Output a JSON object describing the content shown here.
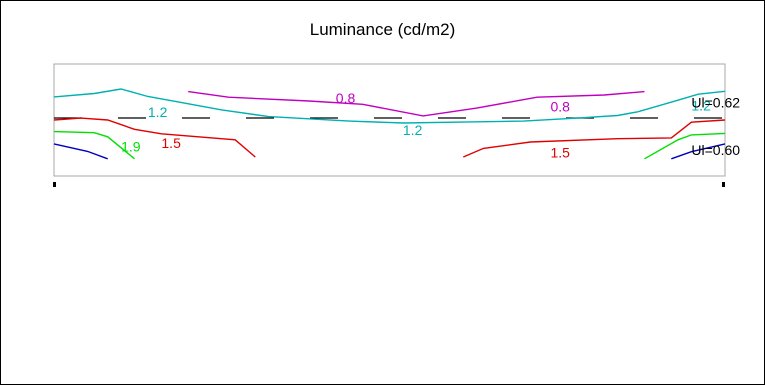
{
  "chart_data": {
    "type": "line",
    "title": "Luminance (cd/m2)",
    "contour_series": [
      {
        "name": "",
        "label": "0.8",
        "color": "#c000c0",
        "segments": [
          [
            [
              0.2,
              0.76
            ],
            [
              0.26,
              0.61
            ],
            [
              0.38,
              0.51
            ],
            [
              0.46,
              0.42
            ],
            [
              0.55,
              0.11
            ],
            [
              0.63,
              0.32
            ],
            [
              0.72,
              0.61
            ],
            [
              0.82,
              0.67
            ],
            [
              0.88,
              0.76
            ]
          ]
        ]
      },
      {
        "name": "",
        "label": "1.2",
        "color": "#00b0b0",
        "segments": [
          [
            [
              0.0,
              0.62
            ],
            [
              0.06,
              0.71
            ],
            [
              0.1,
              0.83
            ],
            [
              0.14,
              0.63
            ],
            [
              0.18,
              0.5
            ],
            [
              0.25,
              0.27
            ],
            [
              0.32,
              0.09
            ],
            [
              0.44,
              -0.03
            ],
            [
              0.52,
              -0.08
            ],
            [
              0.62,
              -0.05
            ],
            [
              0.7,
              -0.03
            ],
            [
              0.78,
              0.05
            ],
            [
              0.84,
              0.12
            ],
            [
              0.87,
              0.22
            ],
            [
              0.93,
              0.53
            ],
            [
              0.96,
              0.69
            ],
            [
              1.0,
              0.77
            ]
          ]
        ]
      },
      {
        "name": "",
        "label": "1.5",
        "color": "#e00000",
        "segments": [
          [
            [
              0.0,
              0.0
            ],
            [
              0.04,
              0.05
            ],
            [
              0.08,
              0.0
            ],
            [
              0.12,
              -0.25
            ],
            [
              0.16,
              -0.37
            ],
            [
              0.27,
              -0.53
            ],
            [
              0.3,
              -0.99
            ]
          ],
          [
            [
              0.61,
              -0.99
            ],
            [
              0.64,
              -0.76
            ],
            [
              0.71,
              -0.59
            ],
            [
              0.84,
              -0.5
            ],
            [
              0.92,
              -0.48
            ],
            [
              0.95,
              -0.06
            ],
            [
              1.0,
              0.0
            ]
          ]
        ]
      },
      {
        "name": "",
        "label": "1.9",
        "color": "#00e000",
        "segments": [
          [
            [
              0.0,
              -0.31
            ],
            [
              0.06,
              -0.34
            ],
            [
              0.08,
              -0.45
            ],
            [
              0.12,
              -1.04
            ]
          ],
          [
            [
              0.88,
              -1.04
            ],
            [
              0.93,
              -0.53
            ],
            [
              0.95,
              -0.4
            ],
            [
              1.0,
              -0.36
            ]
          ]
        ]
      },
      {
        "name": "",
        "label": "",
        "color": "#0000c0",
        "segments": [
          [
            [
              0.0,
              -0.64
            ],
            [
              0.05,
              -0.84
            ],
            [
              0.08,
              -1.04
            ]
          ],
          [
            [
              0.92,
              -1.04
            ],
            [
              0.95,
              -0.85
            ],
            [
              1.0,
              -0.64
            ]
          ]
        ]
      }
    ],
    "value_labels": [
      {
        "text": "0.8",
        "color": "#c000c0",
        "x": 0.42,
        "y": 0.55
      },
      {
        "text": "0.8",
        "color": "#c000c0",
        "x": 0.74,
        "y": 0.33
      },
      {
        "text": "1.2",
        "color": "#00b0b0",
        "x": 0.14,
        "y": 0.18
      },
      {
        "text": "1.2",
        "color": "#00b0b0",
        "x": 0.52,
        "y": -0.3
      },
      {
        "text": "1.2",
        "color": "#00b0b0",
        "x": 0.95,
        "y": 0.36
      },
      {
        "text": "1.5",
        "color": "#e00000",
        "x": 0.16,
        "y": -0.65
      },
      {
        "text": "1.5",
        "color": "#e00000",
        "x": 0.74,
        "y": -0.91
      },
      {
        "text": "1.9",
        "color": "#00e000",
        "x": 0.1,
        "y": -0.75
      }
    ],
    "uniformity_labels": [
      {
        "text": "Ul=0.62",
        "color": "#000000",
        "x": 0.95,
        "y": 0.43
      },
      {
        "text": "Ul=0.60",
        "color": "#000000",
        "x": 0.95,
        "y": -0.84
      }
    ],
    "centerline": {
      "color": "#000000",
      "y": 0.0
    },
    "xlim": [
      0,
      1
    ],
    "ylim": [
      -1.5,
      1.5
    ],
    "xlabel": "",
    "ylabel": "",
    "grid": false,
    "legend": "none"
  }
}
